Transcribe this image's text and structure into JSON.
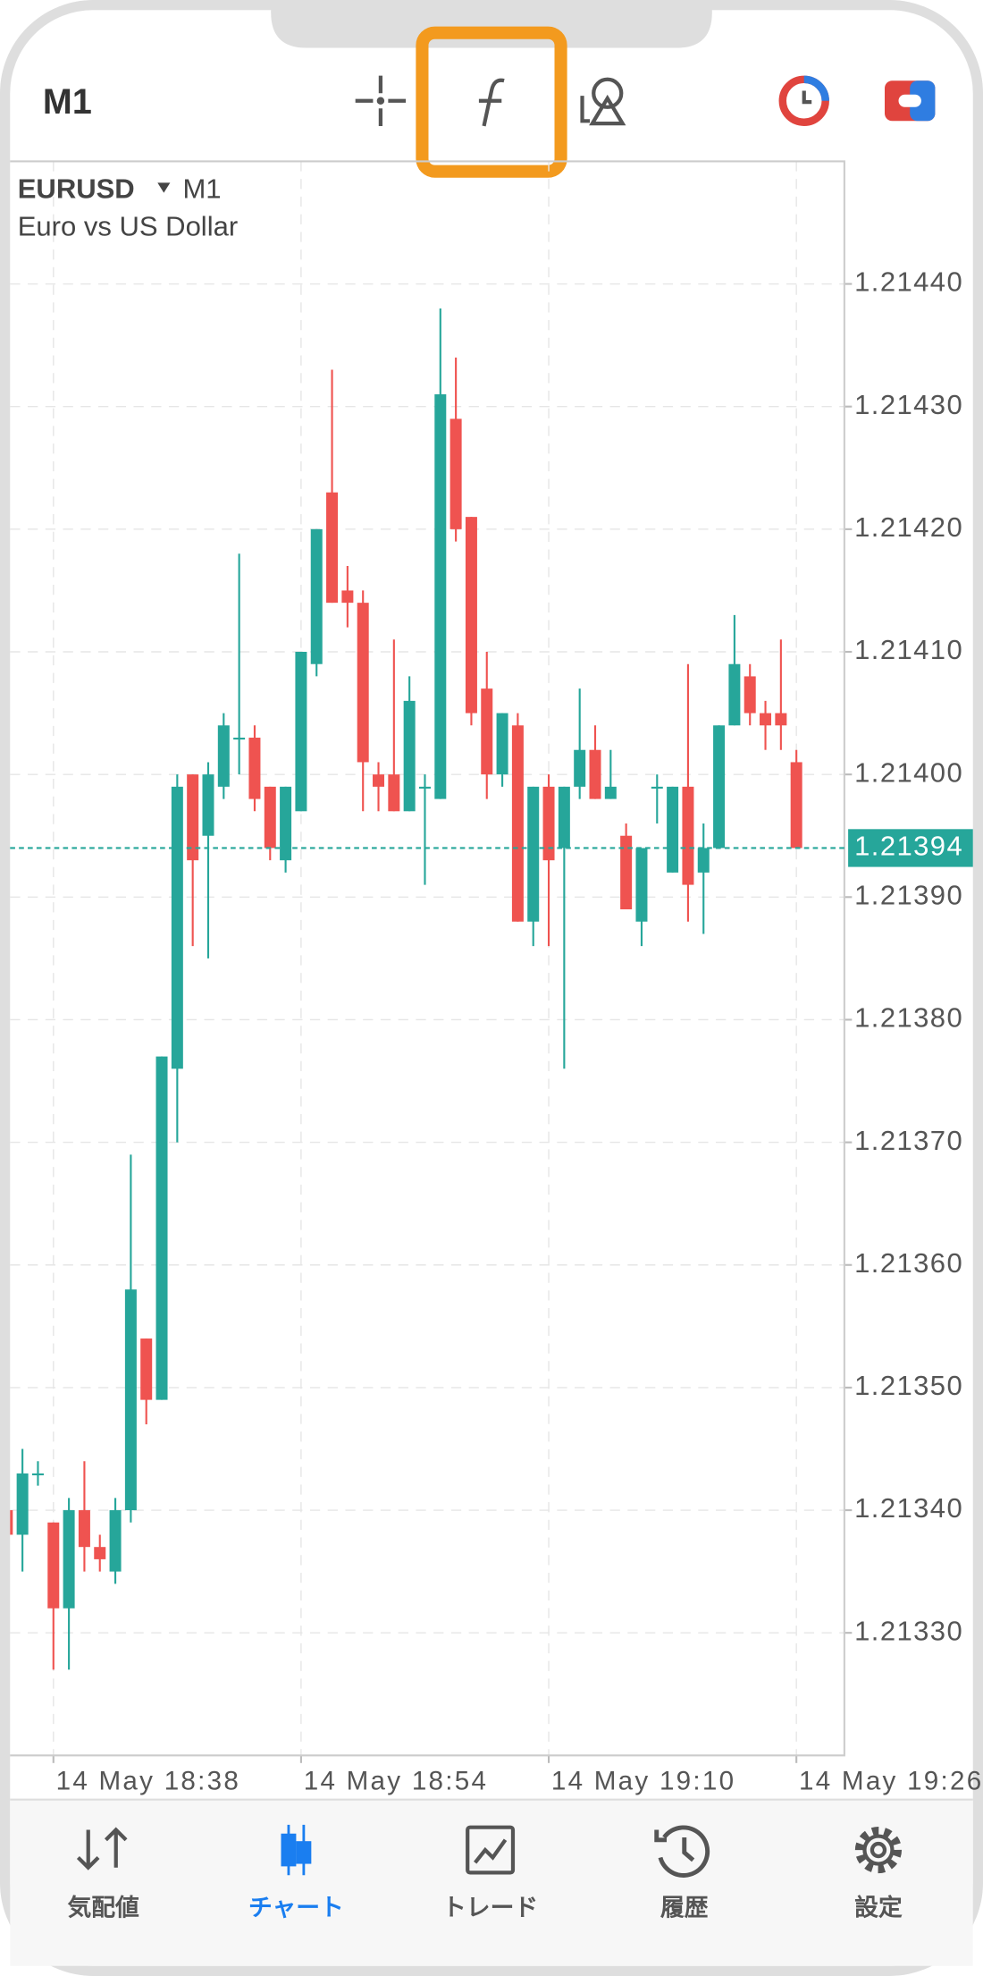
{
  "toolbar": {
    "timeframe": "M1"
  },
  "chart_data": {
    "type": "candlestick",
    "symbol": "EURUSD",
    "timeframe": "M1",
    "description": "Euro vs US Dollar",
    "up_color": "#26a69a",
    "down_color": "#ef5350",
    "grid": true,
    "x": [
      1115,
      1116,
      1117,
      1118,
      1119,
      1120,
      1121,
      1122,
      1123,
      1124,
      1125,
      1126,
      1127,
      1128,
      1129,
      1130,
      1131,
      1132,
      1133,
      1134,
      1135,
      1136,
      1137,
      1138,
      1139,
      1140,
      1141,
      1142,
      1143,
      1144,
      1145,
      1146,
      1147,
      1148,
      1149,
      1150,
      1151,
      1152,
      1153,
      1154,
      1155,
      1156,
      1157,
      1158,
      1159,
      1160,
      1161,
      1162,
      1163,
      1164,
      1165,
      1166
    ],
    "open": [
      1.2134,
      1.21338,
      1.21343,
      1.21339,
      1.21332,
      1.2134,
      1.21337,
      1.21335,
      1.2134,
      1.21354,
      1.21349,
      1.21376,
      1.214,
      1.21395,
      1.21399,
      1.21403,
      1.21403,
      1.21399,
      1.21393,
      1.21397,
      1.21409,
      1.21423,
      1.21415,
      1.21414,
      1.214,
      1.214,
      1.21397,
      1.21399,
      1.21398,
      1.21429,
      1.21421,
      1.21407,
      1.214,
      1.21404,
      1.21388,
      1.21399,
      1.21394,
      1.21399,
      1.21402,
      1.21398,
      1.21395,
      1.21388,
      1.21399,
      1.21392,
      1.21399,
      1.21392,
      1.21394,
      1.21404,
      1.21408,
      1.21405,
      1.21405,
      1.21401
    ],
    "close": [
      1.21338,
      1.21343,
      1.21343,
      1.21332,
      1.2134,
      1.21337,
      1.21336,
      1.2134,
      1.21358,
      1.21349,
      1.21377,
      1.21399,
      1.21393,
      1.214,
      1.21404,
      1.21403,
      1.21398,
      1.21394,
      1.21399,
      1.2141,
      1.2142,
      1.21414,
      1.21414,
      1.21401,
      1.21399,
      1.21397,
      1.21406,
      1.21399,
      1.21431,
      1.2142,
      1.21405,
      1.214,
      1.21405,
      1.21388,
      1.21399,
      1.21393,
      1.21399,
      1.21402,
      1.21398,
      1.21399,
      1.21389,
      1.21394,
      1.21399,
      1.21399,
      1.21391,
      1.21394,
      1.21404,
      1.21409,
      1.21405,
      1.21404,
      1.21404,
      1.21394
    ],
    "high": [
      1.21341,
      1.21345,
      1.21344,
      1.21339,
      1.21341,
      1.21344,
      1.21338,
      1.21341,
      1.21369,
      1.21354,
      1.21377,
      1.214,
      1.214,
      1.21401,
      1.21405,
      1.21418,
      1.21404,
      1.21399,
      1.21399,
      1.2141,
      1.2142,
      1.21433,
      1.21417,
      1.21415,
      1.21401,
      1.21411,
      1.21408,
      1.214,
      1.21438,
      1.21434,
      1.21421,
      1.2141,
      1.21405,
      1.21405,
      1.21399,
      1.214,
      1.21399,
      1.21407,
      1.21404,
      1.21402,
      1.21396,
      1.21394,
      1.214,
      1.21399,
      1.21409,
      1.21396,
      1.21404,
      1.21413,
      1.21409,
      1.21406,
      1.21411,
      1.21402
    ],
    "low": [
      1.21337,
      1.21335,
      1.21342,
      1.21327,
      1.21327,
      1.21335,
      1.21335,
      1.21334,
      1.21339,
      1.21347,
      1.21349,
      1.2137,
      1.21386,
      1.21385,
      1.21398,
      1.214,
      1.21397,
      1.21393,
      1.21392,
      1.21397,
      1.21408,
      1.21414,
      1.21412,
      1.21397,
      1.21397,
      1.21397,
      1.21397,
      1.21391,
      1.21398,
      1.21419,
      1.21404,
      1.21398,
      1.21399,
      1.21388,
      1.21386,
      1.21386,
      1.21376,
      1.21398,
      1.21398,
      1.21398,
      1.21389,
      1.21386,
      1.21396,
      1.21392,
      1.21388,
      1.21387,
      1.21394,
      1.21404,
      1.21404,
      1.21402,
      1.21402,
      1.21394
    ],
    "current_price": 1.21394,
    "ylim": [
      1.2132,
      1.2145
    ],
    "yticks": [
      {
        "value": 1.2133,
        "label": "1.21330"
      },
      {
        "value": 1.2134,
        "label": "1.21340"
      },
      {
        "value": 1.2135,
        "label": "1.21350"
      },
      {
        "value": 1.2136,
        "label": "1.21360"
      },
      {
        "value": 1.2137,
        "label": "1.21370"
      },
      {
        "value": 1.2138,
        "label": "1.21380"
      },
      {
        "value": 1.2139,
        "label": "1.21390"
      },
      {
        "value": 1.214,
        "label": "1.21400"
      },
      {
        "value": 1.2141,
        "label": "1.21410"
      },
      {
        "value": 1.2142,
        "label": "1.21420"
      },
      {
        "value": 1.2143,
        "label": "1.21430"
      },
      {
        "value": 1.2144,
        "label": "1.21440"
      }
    ],
    "xlim": [
      1115.2,
      1169.1
    ],
    "xticks": [
      {
        "value": 1118,
        "label": "14 May 18:38"
      },
      {
        "value": 1134,
        "label": "14 May 18:54"
      },
      {
        "value": 1150,
        "label": "14 May 19:10"
      },
      {
        "value": 1166,
        "label": "14 May 19:26"
      }
    ]
  },
  "tabs": [
    "気配値",
    "チャート",
    "トレード",
    "履歴",
    "設定"
  ]
}
